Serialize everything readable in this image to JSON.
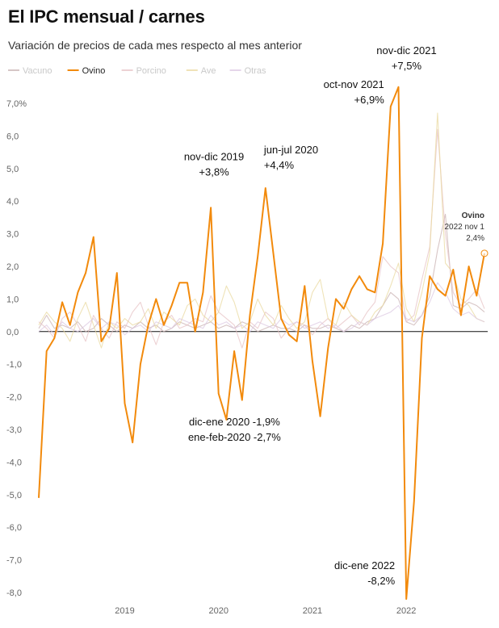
{
  "chart_data": {
    "type": "line",
    "title": "El IPC mensual / carnes",
    "subtitle": "Variación de precios de cada mes respecto al mes anterior",
    "ylim": [
      -8.0,
      7.0
    ],
    "yticks": [
      {
        "v": 7.0,
        "label": "7,0%"
      },
      {
        "v": 6.0,
        "label": "6,0"
      },
      {
        "v": 5.0,
        "label": "5,0"
      },
      {
        "v": 4.0,
        "label": "4,0"
      },
      {
        "v": 3.0,
        "label": "3,0"
      },
      {
        "v": 2.0,
        "label": "2,0"
      },
      {
        "v": 1.0,
        "label": "1,0"
      },
      {
        "v": 0.0,
        "label": "0,0"
      },
      {
        "v": -1.0,
        "label": "-1,0"
      },
      {
        "v": -2.0,
        "label": "-2,0"
      },
      {
        "v": -3.0,
        "label": "-3,0"
      },
      {
        "v": -4.0,
        "label": "-4,0"
      },
      {
        "v": -5.0,
        "label": "-5,0"
      },
      {
        "v": -6.0,
        "label": "-6,0"
      },
      {
        "v": -7.0,
        "label": "-7,0"
      },
      {
        "v": -8.0,
        "label": "-8,0"
      }
    ],
    "xticks": [
      {
        "i": 11,
        "label": "2019"
      },
      {
        "i": 23,
        "label": "2020"
      },
      {
        "i": 35,
        "label": "2021"
      },
      {
        "i": 47,
        "label": "2022"
      }
    ],
    "x_start": "2018 ene",
    "legend": [
      {
        "name": "Vacuno",
        "color": "#c9b2b2",
        "highlight": false
      },
      {
        "name": "Ovino",
        "color": "#f28a0c",
        "highlight": true
      },
      {
        "name": "Porcino",
        "color": "#e7c3c6",
        "highlight": false
      },
      {
        "name": "Ave",
        "color": "#ead9a0",
        "highlight": false
      },
      {
        "name": "Otras",
        "color": "#dcc8e2",
        "highlight": false
      }
    ],
    "series": [
      {
        "name": "Ovino",
        "color": "#f28a0c",
        "highlight": true,
        "values": [
          -5.1,
          -0.6,
          -0.2,
          0.9,
          0.2,
          1.2,
          1.8,
          2.9,
          -0.3,
          0.1,
          1.8,
          -2.2,
          -3.4,
          -1.0,
          0.2,
          1.0,
          0.2,
          0.8,
          1.5,
          1.5,
          0.0,
          1.2,
          3.8,
          -1.9,
          -2.7,
          -0.6,
          -2.1,
          0.5,
          2.3,
          4.4,
          2.4,
          0.4,
          -0.1,
          -0.3,
          1.4,
          -0.9,
          -2.6,
          -0.5,
          1.0,
          0.7,
          1.3,
          1.7,
          1.3,
          1.2,
          2.7,
          6.9,
          7.5,
          -8.2,
          -5.2,
          -0.2,
          1.7,
          1.3,
          1.1,
          1.9,
          0.5,
          2.0,
          1.1,
          2.4
        ]
      },
      {
        "name": "Vacuno",
        "color": "#c9b2b2",
        "highlight": false,
        "values": [
          0.1,
          0.5,
          0.1,
          0.2,
          0.1,
          0.3,
          0.0,
          0.1,
          0.4,
          0.2,
          0.0,
          0.2,
          0.1,
          0.3,
          0.1,
          0.2,
          0.0,
          0.1,
          0.3,
          0.2,
          0.1,
          0.2,
          0.3,
          0.1,
          0.2,
          0.1,
          0.3,
          0.2,
          0.0,
          0.1,
          0.2,
          0.1,
          0.1,
          0.0,
          0.2,
          0.1,
          0.1,
          0.2,
          0.1,
          0.0,
          0.2,
          0.1,
          0.3,
          0.4,
          0.8,
          1.2,
          1.0,
          0.3,
          0.2,
          0.5,
          1.1,
          2.5,
          3.6,
          0.8,
          0.7,
          0.9,
          0.8,
          0.6
        ]
      },
      {
        "name": "Porcino",
        "color": "#e7c3c6",
        "highlight": false,
        "values": [
          0.3,
          0.1,
          -0.2,
          0.4,
          0.6,
          0.2,
          -0.3,
          0.5,
          0.1,
          -0.2,
          0.3,
          0.1,
          0.6,
          0.9,
          0.2,
          -0.4,
          0.3,
          0.5,
          0.1,
          0.2,
          0.4,
          0.3,
          1.1,
          0.6,
          0.4,
          0.2,
          -0.5,
          0.3,
          0.1,
          0.6,
          0.4,
          -0.2,
          0.1,
          0.3,
          0.2,
          -0.1,
          0.2,
          0.4,
          0.1,
          0.3,
          0.5,
          0.2,
          0.6,
          0.9,
          2.3,
          2.0,
          1.8,
          0.3,
          0.5,
          1.6,
          2.6,
          6.2,
          3.0,
          1.2,
          0.8,
          1.0,
          1.3,
          0.7
        ]
      },
      {
        "name": "Ave",
        "color": "#ead9a0",
        "highlight": false,
        "values": [
          0.2,
          0.6,
          0.3,
          0.1,
          -0.3,
          0.4,
          0.9,
          0.2,
          -0.5,
          0.3,
          0.1,
          0.4,
          0.2,
          0.3,
          0.7,
          0.1,
          0.6,
          0.4,
          0.2,
          0.8,
          1.0,
          0.5,
          0.3,
          0.6,
          1.4,
          0.9,
          0.1,
          0.3,
          1.0,
          0.5,
          0.2,
          0.8,
          0.4,
          0.1,
          0.3,
          1.2,
          1.6,
          0.4,
          0.2,
          0.9,
          0.5,
          0.3,
          0.2,
          0.6,
          0.8,
          1.4,
          2.1,
          0.7,
          0.3,
          1.2,
          2.4,
          6.7,
          2.1,
          1.8,
          1.0,
          0.8,
          0.4,
          0.3
        ]
      },
      {
        "name": "Otras",
        "color": "#dcc8e2",
        "highlight": false,
        "values": [
          0.0,
          0.2,
          -0.1,
          0.3,
          0.1,
          0.0,
          0.2,
          0.4,
          0.1,
          0.3,
          0.2,
          -0.1,
          0.1,
          0.2,
          0.0,
          0.3,
          0.2,
          0.1,
          0.4,
          0.3,
          0.2,
          0.1,
          0.5,
          0.2,
          0.3,
          0.1,
          0.2,
          0.0,
          0.3,
          0.2,
          0.1,
          0.4,
          0.2,
          0.3,
          0.1,
          0.2,
          0.3,
          0.1,
          0.2,
          0.0,
          0.1,
          0.3,
          0.2,
          0.4,
          0.5,
          0.6,
          0.8,
          0.4,
          0.3,
          0.5,
          0.9,
          1.5,
          1.2,
          0.7,
          0.5,
          0.6,
          0.4,
          0.3
        ]
      }
    ],
    "annotations": [
      {
        "lines": [
          "nov-dic 2021",
          "+7,5%"
        ],
        "i": 46,
        "v": 7.5,
        "anchor": "middle",
        "dx": 10,
        "dy": -22
      },
      {
        "lines": [
          "oct-nov 2021",
          "+6,9%"
        ],
        "i": 45,
        "v": 6.9,
        "anchor": "end",
        "dx": -8,
        "dy": -4
      },
      {
        "lines": [
          "nov-dic 2019",
          "+3,8%"
        ],
        "i": 22,
        "v": 3.8,
        "anchor": "middle",
        "dx": 4,
        "dy": -40
      },
      {
        "lines": [
          "jun-jul 2020",
          "+4,4%"
        ],
        "i": 29,
        "v": 4.4,
        "anchor": "start",
        "dx": -2,
        "dy": -24
      },
      {
        "lines": [
          "dic-ene 2020 -1,9%",
          "ene-feb-2020 -2,7%"
        ],
        "i": 24,
        "v": -2.7,
        "anchor": "middle",
        "dx": 10,
        "dy": 26
      },
      {
        "lines": [
          "dic-ene 2022",
          "-8,2%"
        ],
        "i": 47,
        "v": -8.2,
        "anchor": "end",
        "dx": -14,
        "dy": -18
      }
    ],
    "end_label": {
      "name": "Ovino",
      "date": "2022 nov 1",
      "value": "2,4%"
    }
  }
}
